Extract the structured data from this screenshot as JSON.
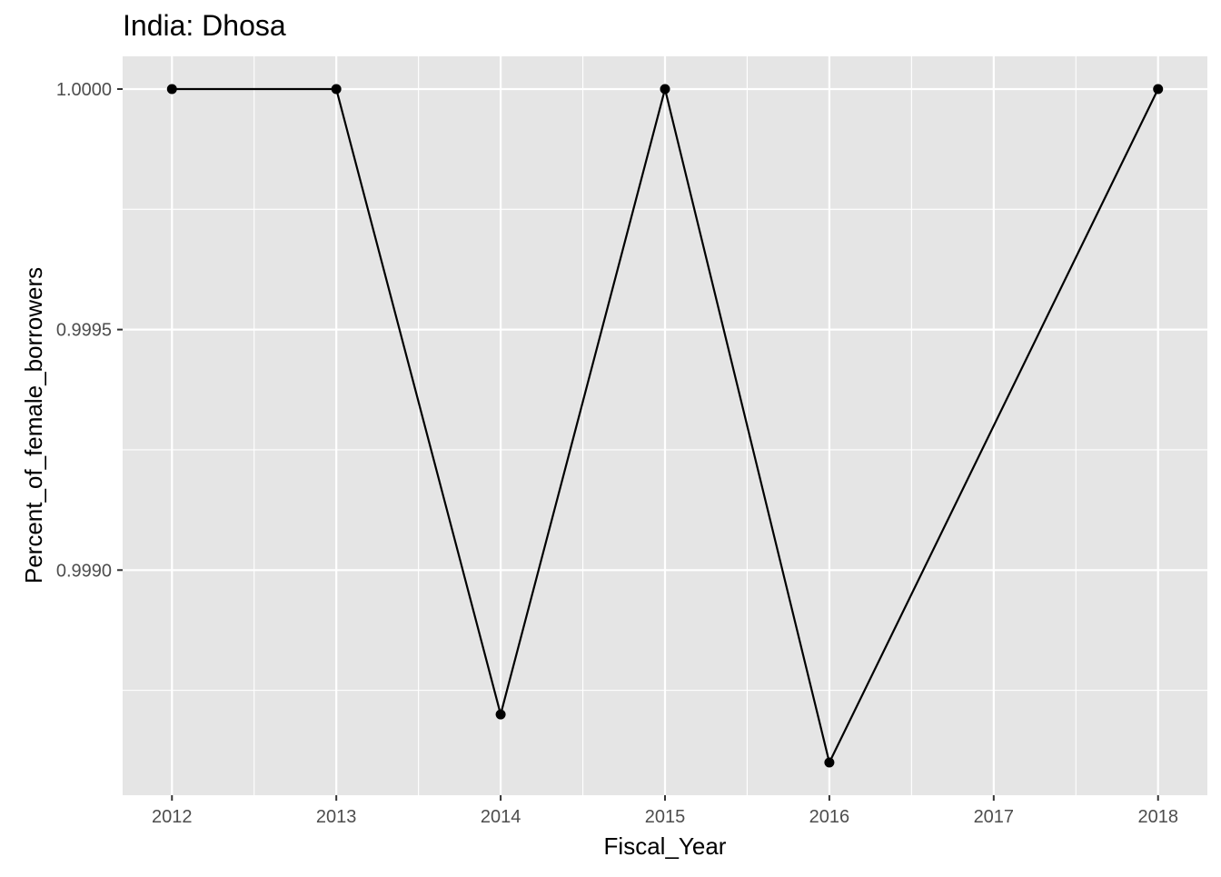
{
  "chart_data": {
    "type": "line",
    "title": "India:  Dhosa",
    "xlabel": "Fiscal_Year",
    "ylabel": "Percent_of_female_borrowers",
    "x": [
      2012,
      2013,
      2014,
      2015,
      2016,
      2018
    ],
    "series": [
      {
        "values": [
          1.0,
          1.0,
          0.9987,
          1.0,
          0.9986,
          1.0
        ]
      }
    ],
    "xlim": [
      2011.7,
      2018.3
    ],
    "ylim": [
      0.998532,
      1.000068
    ],
    "x_ticks": [
      2012,
      2013,
      2014,
      2015,
      2016,
      2017,
      2018
    ],
    "x_tick_labels": [
      "2012",
      "2013",
      "2014",
      "2015",
      "2016",
      "2017",
      "2018"
    ],
    "y_ticks": [
      0.999,
      0.9995,
      1.0
    ],
    "y_tick_labels": [
      "0.9990",
      "0.9995",
      "1.0000"
    ],
    "grid": true,
    "legend": "none",
    "colors": {
      "panel_background": "#e5e5e5",
      "grid": "#ffffff",
      "line": "#000000",
      "point": "#000000",
      "tick_text": "#4d4d4d",
      "text": "#000000"
    }
  }
}
